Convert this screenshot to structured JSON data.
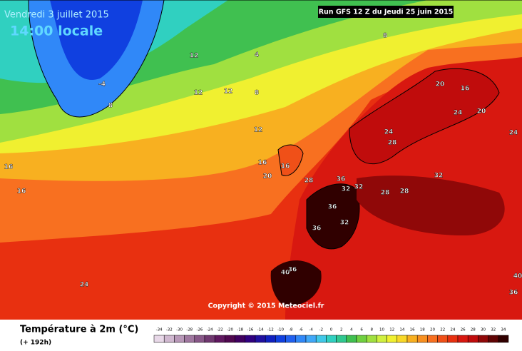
{
  "header": {
    "date": "Vendredi 3 juillet 2015",
    "time": "14:00 locale",
    "run": "Run GFS 12 Z du Jeudi 25 juin 2015"
  },
  "copyright": "Copyright © 2015 Meteociel.fr",
  "legend": {
    "title": "Température à 2m (°C)",
    "subtitle": "(+ 192h)",
    "scale": {
      "values": [
        -34,
        -32,
        -30,
        -28,
        -26,
        -24,
        -22,
        -20,
        -18,
        -16,
        -14,
        -12,
        -10,
        -8,
        -6,
        -4,
        -2,
        0,
        2,
        4,
        6,
        8,
        10,
        12,
        14,
        16,
        18,
        20,
        22,
        24,
        26,
        28,
        30,
        32,
        34
      ],
      "colors": [
        "#e8d8e8",
        "#d0b8d0",
        "#b898b8",
        "#a078a0",
        "#885888",
        "#703870",
        "#601860",
        "#500850",
        "#400060",
        "#300080",
        "#2010a0",
        "#1020c0",
        "#1040e0",
        "#2060f0",
        "#3088f8",
        "#40a8f8",
        "#40c8e8",
        "#30d0c0",
        "#30c890",
        "#40c050",
        "#70d040",
        "#a0e040",
        "#d0f040",
        "#f0f030",
        "#f8d828",
        "#f8b020",
        "#f89020",
        "#f87020",
        "#f05018",
        "#e83010",
        "#d81810",
        "#c00c0c",
        "#900808",
        "#600404",
        "#300000"
      ]
    }
  },
  "map_labels": [
    "8",
    "4",
    "12",
    "-4",
    "8",
    "12",
    "12",
    "8",
    "12",
    "16",
    "20",
    "16",
    "28",
    "36",
    "32",
    "32",
    "24",
    "28",
    "20",
    "16",
    "24",
    "20",
    "24",
    "32",
    "28",
    "28",
    "36",
    "32",
    "36",
    "24",
    "40",
    "36",
    "36",
    "40",
    "16",
    "16"
  ]
}
